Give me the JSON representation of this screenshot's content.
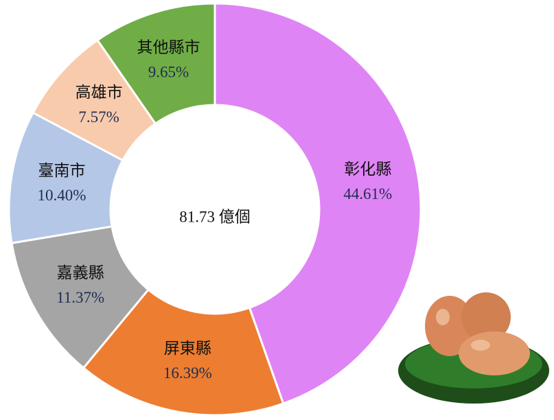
{
  "chart_data": {
    "type": "donut",
    "center_label": "81.73 億個",
    "categories": [
      "彰化縣",
      "屏東縣",
      "嘉義縣",
      "臺南市",
      "高雄市",
      "其他縣市"
    ],
    "values": [
      44.61,
      16.39,
      11.37,
      10.4,
      7.57,
      9.65
    ],
    "value_labels": [
      "44.61%",
      "16.39%",
      "11.37%",
      "10.40%",
      "7.57%",
      "9.65%"
    ],
    "colors": [
      "#df84f5",
      "#ed7d31",
      "#a5a5a5",
      "#b4c7e7",
      "#f8cbad",
      "#70ad47"
    ]
  }
}
